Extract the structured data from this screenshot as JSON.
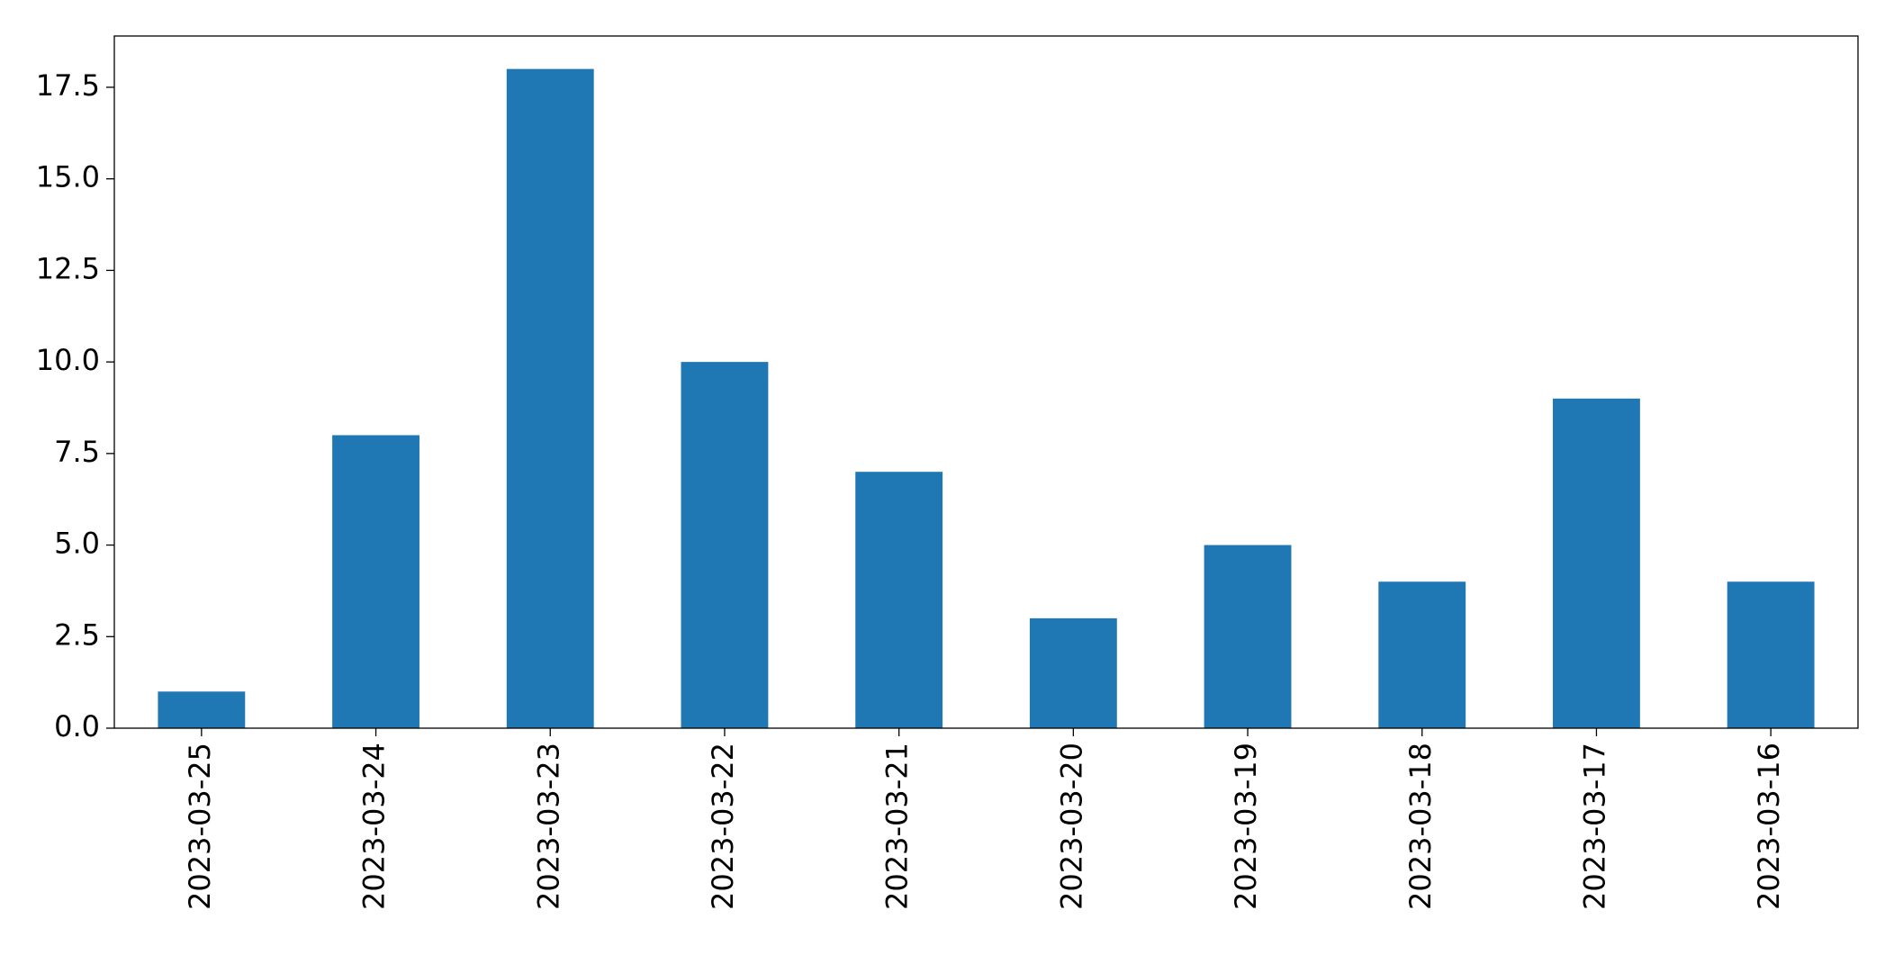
{
  "chart_data": {
    "type": "bar",
    "categories": [
      "2023-03-25",
      "2023-03-24",
      "2023-03-23",
      "2023-03-22",
      "2023-03-21",
      "2023-03-20",
      "2023-03-19",
      "2023-03-18",
      "2023-03-17",
      "2023-03-16"
    ],
    "values": [
      1,
      8,
      18,
      10,
      7,
      3,
      5,
      4,
      9,
      4
    ],
    "color": "#1f77b4",
    "ylim": [
      0,
      18.9
    ],
    "yticks": [
      {
        "value": 0,
        "label": "0.0"
      },
      2.5,
      {
        "value": 5,
        "label": "5.0"
      },
      7.5,
      {
        "value": 10,
        "label": "10.0"
      },
      12.5,
      {
        "value": 15,
        "label": "15.0"
      },
      17.5
    ],
    "grid": false
  }
}
